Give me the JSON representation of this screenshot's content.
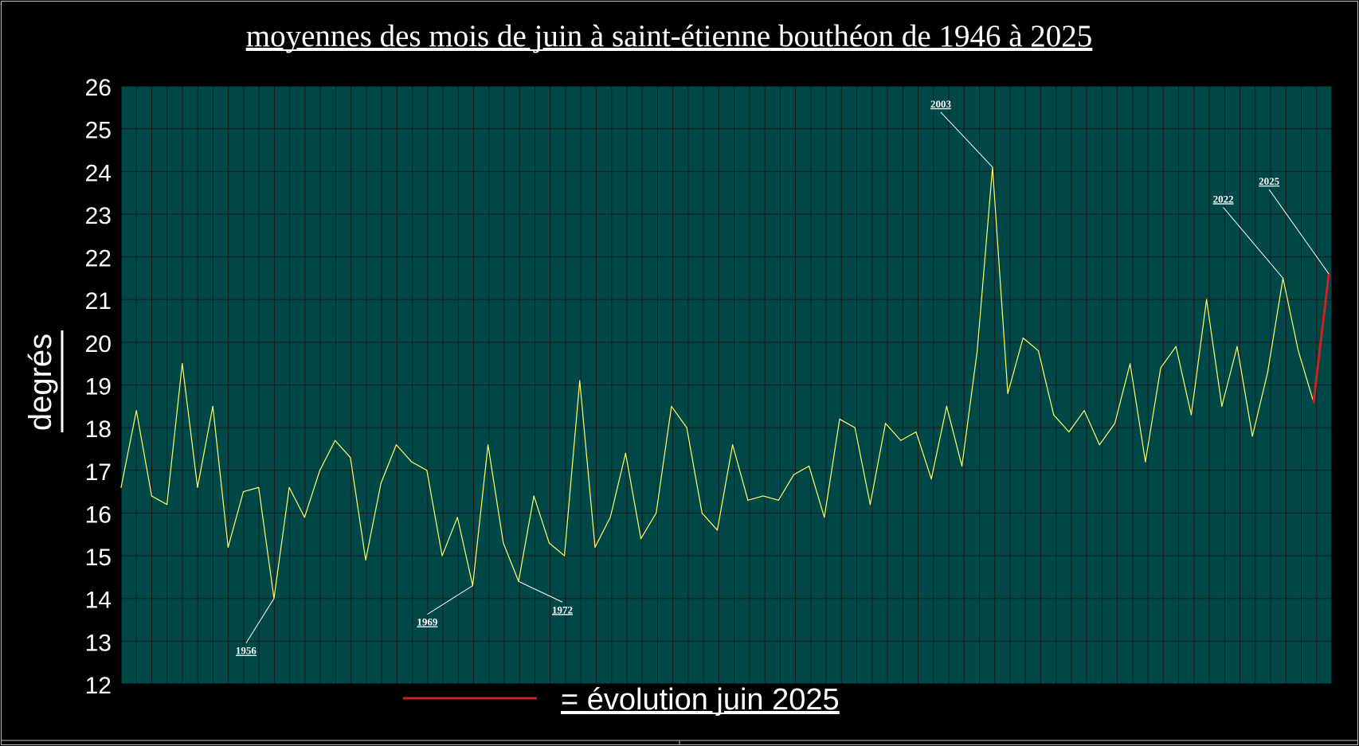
{
  "chart_data": {
    "type": "line",
    "title": "moyennes des mois de juin à saint-étienne bouthéon de 1946 à 2025",
    "ylabel": "degrés",
    "xlabel": "",
    "ylim": [
      12,
      26
    ],
    "yticks": [
      12,
      13,
      14,
      15,
      16,
      17,
      18,
      19,
      20,
      21,
      22,
      23,
      24,
      25,
      26
    ],
    "grid": true,
    "background_color": "#004848",
    "line_color": "#ffff66",
    "highlight_color": "#cc2222",
    "x": [
      1946,
      1947,
      1948,
      1949,
      1950,
      1951,
      1952,
      1953,
      1954,
      1955,
      1956,
      1957,
      1958,
      1959,
      1960,
      1961,
      1962,
      1963,
      1964,
      1965,
      1966,
      1967,
      1968,
      1969,
      1970,
      1971,
      1972,
      1973,
      1974,
      1975,
      1976,
      1977,
      1978,
      1979,
      1980,
      1981,
      1982,
      1983,
      1984,
      1985,
      1986,
      1987,
      1988,
      1989,
      1990,
      1991,
      1992,
      1993,
      1994,
      1995,
      1996,
      1997,
      1998,
      1999,
      2000,
      2001,
      2002,
      2003,
      2004,
      2005,
      2006,
      2007,
      2008,
      2009,
      2010,
      2011,
      2012,
      2013,
      2014,
      2015,
      2016,
      2017,
      2018,
      2019,
      2020,
      2021,
      2022,
      2023,
      2024,
      2025
    ],
    "series": [
      {
        "values": [
          16.6,
          18.4,
          16.4,
          16.2,
          19.5,
          16.6,
          18.5,
          15.2,
          16.5,
          16.6,
          14.0,
          16.6,
          15.9,
          17.0,
          17.7,
          17.3,
          14.9,
          16.7,
          17.6,
          17.2,
          17.0,
          15.0,
          15.9,
          14.3,
          17.6,
          15.3,
          14.4,
          16.4,
          15.3,
          15.0,
          19.1,
          15.2,
          15.9,
          17.4,
          15.4,
          16.0,
          18.5,
          18.0,
          16.0,
          15.6,
          17.6,
          16.3,
          16.4,
          16.3,
          16.9,
          17.1,
          15.9,
          18.2,
          18.0,
          16.2,
          18.1,
          17.7,
          17.9,
          16.8,
          18.5,
          17.1,
          19.8,
          24.1,
          18.8,
          20.1,
          19.8,
          18.3,
          17.9,
          18.4,
          17.6,
          18.1,
          19.5,
          17.2,
          19.4,
          19.9,
          18.3,
          21.0,
          18.5,
          19.9,
          17.8,
          19.3,
          21.5,
          19.8,
          18.6,
          21.6
        ]
      }
    ],
    "highlight_segment": {
      "from_year": 2024,
      "to_year": 2025
    },
    "annotations": [
      {
        "year": 1956,
        "label": "1956"
      },
      {
        "year": 1969,
        "label": "1969"
      },
      {
        "year": 1972,
        "label": "1972"
      },
      {
        "year": 2003,
        "label": "2003"
      },
      {
        "year": 2022,
        "label": "2022"
      },
      {
        "year": 2025,
        "label": "2025"
      }
    ],
    "legend": {
      "label": "= évolution juin 2025",
      "placement": "bottom-center"
    }
  }
}
